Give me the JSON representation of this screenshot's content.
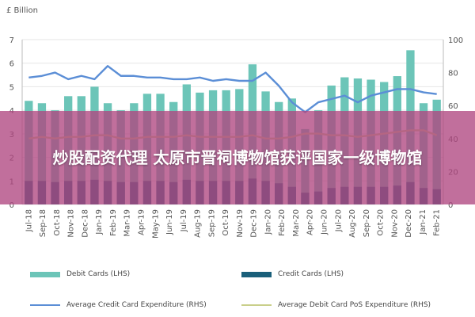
{
  "banner": {
    "text": "炒股配资代理 太原市晋祠博物馆获评国家一级博物馆"
  },
  "chart_data": {
    "type": "bar",
    "left_axis_unit": "£ Billion",
    "ylim_left": [
      0,
      7
    ],
    "yticks_left": [
      0,
      1,
      2,
      3,
      4,
      5,
      6,
      7
    ],
    "ylim_right": [
      0,
      100
    ],
    "yticks_right": [
      0,
      20,
      40,
      60,
      80,
      100
    ],
    "grid": "horizontal",
    "legend_position": "bottom",
    "categories": [
      "Jul-18",
      "Aug-18",
      "Sep-18",
      "Oct-18",
      "Nov-18",
      "Dec-18",
      "Jan-19",
      "Feb-19",
      "Mar-19",
      "Apr-19",
      "May-19",
      "Jun-19",
      "Jul-19",
      "Aug-19",
      "Sep-19",
      "Oct-19",
      "Nov-19",
      "Dec-19",
      "Jan-20",
      "Feb-20",
      "Mar-20",
      "Apr-20",
      "May-20",
      "Jun-20",
      "Jul-20",
      "Aug-20",
      "Sep-20",
      "Oct-20",
      "Nov-20",
      "Dec-20",
      "Jan-21",
      "Feb-21"
    ],
    "x_tick_labels": [
      "Jul-18",
      "Sep-18",
      "Oct-18",
      "Nov-18",
      "Dec-18",
      "Jan-19",
      "Feb-19",
      "Mar-19",
      "Apr-19",
      "May-19",
      "Jun-19",
      "Jul-19",
      "Aug-19",
      "Sep-19",
      "Oct-19",
      "Nov-19",
      "Dec-19",
      "Jan-20",
      "Feb-20",
      "Mar-20",
      "Apr-20",
      "Jun-20",
      "Jul-20",
      "Aug-20",
      "Sep-20",
      "Oct-20",
      "Nov-20",
      "Dec-20",
      "Jan-21",
      "Feb-21"
    ],
    "series": [
      {
        "name": "Debit Cards (LHS)",
        "kind": "bar",
        "axis": "left",
        "color": "#6cc5b8",
        "values": [
          4.4,
          4.3,
          4.0,
          4.6,
          4.6,
          5.0,
          4.3,
          4.0,
          4.3,
          4.7,
          4.7,
          4.35,
          5.1,
          4.75,
          4.85,
          4.85,
          4.9,
          5.95,
          4.8,
          4.35,
          4.5,
          3.2,
          4.0,
          5.05,
          5.4,
          5.35,
          5.3,
          5.2,
          5.45,
          6.55,
          4.3,
          4.45
        ]
      },
      {
        "name": "Credit Cards (LHS)",
        "kind": "bar",
        "axis": "left",
        "color": "#1a5f7a",
        "values": [
          1.0,
          1.0,
          0.95,
          1.0,
          1.0,
          1.05,
          1.0,
          0.95,
          0.95,
          1.0,
          1.0,
          0.95,
          1.05,
          1.0,
          1.0,
          1.0,
          1.0,
          1.1,
          1.0,
          0.9,
          0.75,
          0.5,
          0.55,
          0.7,
          0.75,
          0.75,
          0.75,
          0.75,
          0.8,
          0.95,
          0.7,
          0.65
        ]
      },
      {
        "name": "Average Credit Card Expenditure (RHS)",
        "kind": "line",
        "axis": "right",
        "color": "#5b8ed6",
        "values": [
          77,
          78,
          80,
          76,
          78,
          76,
          84,
          78,
          78,
          77,
          77,
          76,
          76,
          77,
          75,
          76,
          75,
          75,
          80,
          72,
          62,
          56,
          62,
          64,
          66,
          62,
          66,
          68,
          70,
          70,
          68,
          67
        ]
      },
      {
        "name": "Average Debit Card PoS Expenditure (RHS)",
        "kind": "line",
        "axis": "right",
        "color": "#c9cf8a",
        "values": [
          40,
          41,
          40,
          41,
          41,
          42,
          42,
          40,
          40,
          41,
          41,
          41,
          42,
          41,
          41,
          41,
          41,
          42,
          40,
          40,
          41,
          43,
          43,
          42,
          42,
          41,
          42,
          43,
          44,
          45,
          45,
          42
        ]
      }
    ]
  }
}
